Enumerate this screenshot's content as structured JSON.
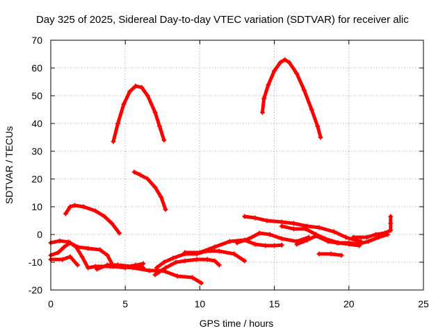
{
  "chart_data": {
    "type": "scatter",
    "title": "Day 325 of 2025, Sidereal Day-to-day VTEC variation (SDTVAR) for receiver alic",
    "xlabel": "GPS time / hours",
    "ylabel": "SDTVAR / TECUs",
    "xlim": [
      0,
      25
    ],
    "ylim": [
      -20,
      70
    ],
    "xticks": [
      "0",
      "5",
      "10",
      "15",
      "20",
      "25"
    ],
    "yticks": [
      "-20",
      "-10",
      "0",
      "10",
      "20",
      "30",
      "40",
      "50",
      "60",
      "70"
    ],
    "grid": true,
    "marker_color": "#ff0000",
    "series": [
      {
        "name": "arc-high-1",
        "points": [
          [
            4.2,
            33.5
          ],
          [
            4.5,
            40
          ],
          [
            4.9,
            47
          ],
          [
            5.3,
            51.5
          ],
          [
            5.7,
            53.5
          ],
          [
            6.1,
            53
          ],
          [
            6.5,
            50
          ],
          [
            7.0,
            44
          ],
          [
            7.3,
            39
          ],
          [
            7.6,
            34
          ]
        ]
      },
      {
        "name": "arc-high-2",
        "points": [
          [
            14.2,
            44
          ],
          [
            14.3,
            49
          ],
          [
            14.6,
            54
          ],
          [
            15.0,
            59
          ],
          [
            15.4,
            62
          ],
          [
            15.7,
            63
          ],
          [
            16.0,
            62
          ],
          [
            16.5,
            58
          ],
          [
            17.0,
            52
          ],
          [
            17.5,
            45
          ],
          [
            17.9,
            39
          ],
          [
            18.1,
            35
          ]
        ]
      },
      {
        "name": "arc-mid",
        "points": [
          [
            5.6,
            22.5
          ],
          [
            6.0,
            21.5
          ],
          [
            6.5,
            20
          ],
          [
            7.0,
            17
          ],
          [
            7.4,
            13.5
          ],
          [
            7.7,
            9
          ]
        ]
      },
      {
        "name": "arc-low-1",
        "points": [
          [
            1.0,
            7.5
          ],
          [
            1.3,
            10
          ],
          [
            1.6,
            10.5
          ],
          [
            2.2,
            10
          ],
          [
            3.0,
            8.5
          ],
          [
            3.6,
            6.5
          ],
          [
            4.1,
            4
          ],
          [
            4.6,
            0.5
          ]
        ]
      },
      {
        "name": "arc-low-2",
        "points": [
          [
            0,
            -3
          ],
          [
            0.6,
            -2.3
          ],
          [
            1.2,
            -2.7
          ],
          [
            1.8,
            -4.5
          ],
          [
            2.5,
            -5
          ],
          [
            3.3,
            -5.5
          ],
          [
            3.8,
            -7.5
          ],
          [
            4.2,
            -11.5
          ],
          [
            5.0,
            -12
          ],
          [
            5.7,
            -11
          ],
          [
            6.2,
            -12
          ]
        ]
      },
      {
        "name": "arc-low-3",
        "points": [
          [
            0,
            -7.5
          ],
          [
            0.5,
            -6.5
          ],
          [
            0.9,
            -4.5
          ],
          [
            1.3,
            -3
          ],
          [
            1.7,
            -4.5
          ],
          [
            2.1,
            -8
          ],
          [
            2.5,
            -12
          ],
          [
            3.0,
            -11.5
          ],
          [
            4.0,
            -11.5
          ],
          [
            5.5,
            -12
          ],
          [
            6.6,
            -13
          ],
          [
            7.5,
            -13
          ],
          [
            8.5,
            -15
          ],
          [
            9.5,
            -15.5
          ],
          [
            10.1,
            -17.5
          ]
        ]
      },
      {
        "name": "arc-low-4",
        "points": [
          [
            0,
            -9
          ],
          [
            0.8,
            -9
          ],
          [
            1.3,
            -8
          ],
          [
            1.8,
            -11
          ]
        ]
      },
      {
        "name": "arc-low-5",
        "points": [
          [
            3.1,
            -12.5
          ],
          [
            3.8,
            -11
          ],
          [
            4.5,
            -11
          ],
          [
            5.4,
            -11.5
          ],
          [
            6.2,
            -10.5
          ]
        ]
      },
      {
        "name": "arc-low-6",
        "points": [
          [
            7.1,
            -12
          ],
          [
            7.6,
            -10
          ],
          [
            8.2,
            -8.5
          ],
          [
            9.0,
            -7
          ],
          [
            9.8,
            -7
          ],
          [
            10.4,
            -6
          ],
          [
            11.3,
            -6
          ],
          [
            12.3,
            -7
          ],
          [
            13.0,
            -9.5
          ]
        ]
      },
      {
        "name": "arc-low-7",
        "points": [
          [
            7.0,
            -14.5
          ],
          [
            7.7,
            -12
          ],
          [
            8.4,
            -10
          ],
          [
            9.0,
            -9.5
          ],
          [
            9.8,
            -9
          ],
          [
            10.5,
            -9
          ],
          [
            11.0,
            -9.5
          ],
          [
            11.3,
            -11
          ]
        ]
      },
      {
        "name": "arc-low-8",
        "points": [
          [
            9.0,
            -6.5
          ],
          [
            10.0,
            -6.5
          ],
          [
            11.0,
            -4.5
          ],
          [
            12.0,
            -2.5
          ],
          [
            13.0,
            -2
          ],
          [
            13.7,
            -3.5
          ],
          [
            14.4,
            -4
          ],
          [
            15.0,
            -4
          ],
          [
            15.5,
            -3.8
          ]
        ]
      },
      {
        "name": "arc-low-9",
        "points": [
          [
            12.5,
            -3
          ],
          [
            13.3,
            -1.5
          ],
          [
            14.0,
            0.5
          ],
          [
            14.7,
            0
          ],
          [
            15.5,
            -1.5
          ],
          [
            16.5,
            -2.5
          ],
          [
            17.3,
            -1
          ]
        ]
      },
      {
        "name": "arc-low-10",
        "points": [
          [
            13.0,
            6.5
          ],
          [
            13.7,
            6
          ],
          [
            14.5,
            5
          ],
          [
            15.5,
            4.5
          ],
          [
            16.3,
            4
          ],
          [
            17.2,
            3
          ],
          [
            18.0,
            2.5
          ],
          [
            19.0,
            1
          ],
          [
            19.8,
            -1
          ],
          [
            20.4,
            -2
          ],
          [
            20.8,
            -2.5
          ]
        ]
      },
      {
        "name": "arc-low-11",
        "points": [
          [
            15.5,
            3
          ],
          [
            16.3,
            2
          ],
          [
            17.1,
            2
          ],
          [
            17.8,
            0
          ],
          [
            18.4,
            -1.5
          ],
          [
            19.3,
            -3
          ],
          [
            20.0,
            -3.5
          ],
          [
            20.7,
            -4
          ]
        ]
      },
      {
        "name": "arc-low-12",
        "points": [
          [
            16.5,
            -3.5
          ],
          [
            17.2,
            -2
          ],
          [
            17.8,
            -0.5
          ],
          [
            18.6,
            -2.5
          ],
          [
            19.2,
            -3
          ],
          [
            20.0,
            -3
          ],
          [
            20.6,
            -3.5
          ],
          [
            21.3,
            -2.5
          ],
          [
            22.0,
            -1
          ],
          [
            22.6,
            0
          ]
        ]
      },
      {
        "name": "arc-low-13",
        "points": [
          [
            18.0,
            -7
          ],
          [
            18.8,
            -7
          ],
          [
            19.5,
            -7.5
          ]
        ]
      },
      {
        "name": "arc-low-14",
        "points": [
          [
            20.3,
            -1
          ],
          [
            21.2,
            -1
          ],
          [
            21.8,
            0
          ],
          [
            22.4,
            0.5
          ],
          [
            22.8,
            1.5
          ],
          [
            22.8,
            4
          ],
          [
            22.8,
            6.5
          ]
        ]
      }
    ]
  }
}
